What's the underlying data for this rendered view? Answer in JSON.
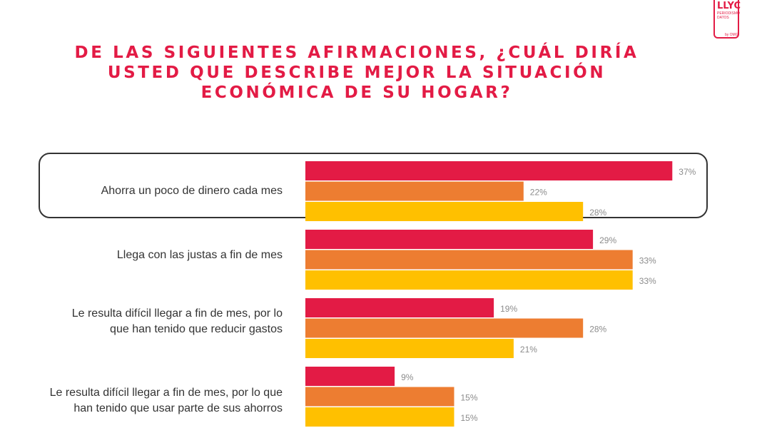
{
  "logo": {
    "text": "LLYC",
    "subtitle": "PERIODISMO DATOS",
    "tag": "by OMG"
  },
  "colors": [
    "#e31b45",
    "#ed7d31",
    "#ffc000"
  ],
  "chart_data": {
    "type": "bar",
    "orientation": "horizontal",
    "title_lines": [
      "DE LAS SIGUIENTES AFIRMACIONES, ¿CUÁL DIRÍA",
      "USTED QUE DESCRIBE MEJOR LA SITUACIÓN",
      "ECONÓMICA DE SU HOGAR?"
    ],
    "categories": [
      [
        "Ahorra un poco de dinero cada mes"
      ],
      [
        "Llega con las justas a fin de mes"
      ],
      [
        "Le resulta difícil llegar a fin de mes, por lo",
        "que han tenido que reducir gastos"
      ],
      [
        "Le resulta difícil llegar a fin de mes, por lo que",
        "han tenido que usar parte de sus ahorros"
      ]
    ],
    "series": [
      {
        "values": [
          37,
          29,
          19,
          9
        ]
      },
      {
        "values": [
          22,
          33,
          28,
          15
        ]
      },
      {
        "values": [
          28,
          33,
          21,
          15
        ]
      }
    ],
    "value_suffix": "%",
    "xlim": [
      0,
      40
    ],
    "highlighted_category": 0,
    "legend": "none",
    "grid": false
  }
}
